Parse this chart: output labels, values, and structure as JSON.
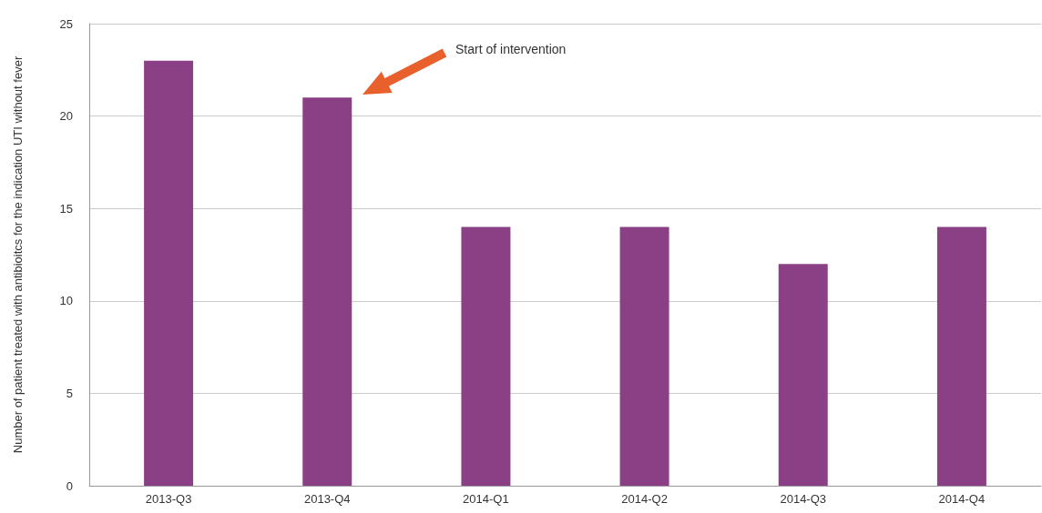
{
  "chart_data": {
    "type": "bar",
    "ylabel": "Number of patient treated with antibioitcs for the indication UTI without fever",
    "categories": [
      "2013-Q3",
      "2013-Q4",
      "2014-Q1",
      "2014-Q2",
      "2014-Q3",
      "2014-Q4"
    ],
    "values": [
      23,
      21,
      14,
      14,
      12,
      14
    ],
    "color": "#8b3f84",
    "ylim": [
      0,
      25
    ],
    "yticks": [
      0,
      5,
      10,
      15,
      20,
      25
    ],
    "grid": "y",
    "annotations": [
      "Start of intervention"
    ]
  }
}
